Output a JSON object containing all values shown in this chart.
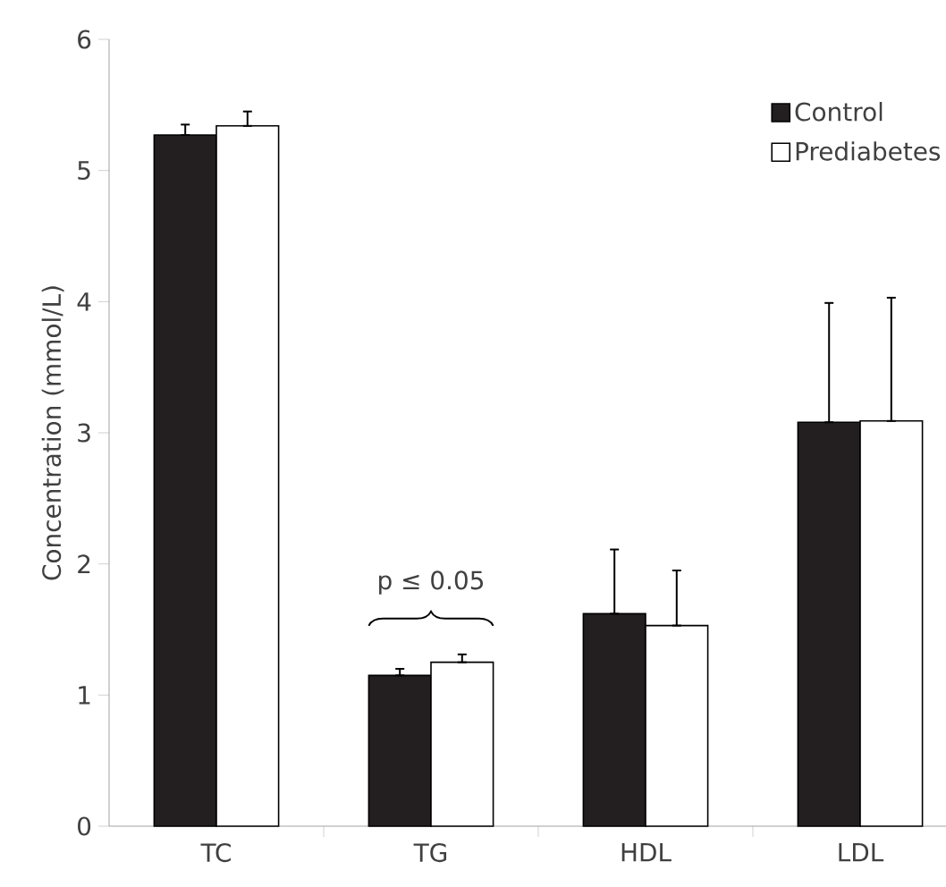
{
  "chart_data": {
    "type": "bar",
    "ylabel": "Concentration (mmol/L)",
    "categories": [
      "TC",
      "TG",
      "HDL",
      "LDL"
    ],
    "series": [
      {
        "name": "Control",
        "color": "#231f20",
        "values": [
          5.27,
          1.15,
          1.62,
          3.08
        ],
        "errors": [
          [
            5.27,
            5.35
          ],
          [
            1.15,
            1.2
          ],
          [
            1.62,
            2.11
          ],
          [
            3.08,
            3.99
          ]
        ]
      },
      {
        "name": "Prediabetes",
        "color": "#ffffff",
        "values": [
          5.34,
          1.25,
          1.53,
          3.09
        ],
        "errors": [
          [
            5.34,
            5.45
          ],
          [
            1.25,
            1.31
          ],
          [
            1.53,
            1.95
          ],
          [
            3.09,
            4.03
          ]
        ]
      }
    ],
    "annotations": [
      "p ≤ 0.05"
    ],
    "ylim": [
      0,
      6
    ],
    "yticks": [
      0,
      1,
      2,
      3,
      4,
      5,
      6
    ],
    "grid": false,
    "legend": "top right"
  }
}
